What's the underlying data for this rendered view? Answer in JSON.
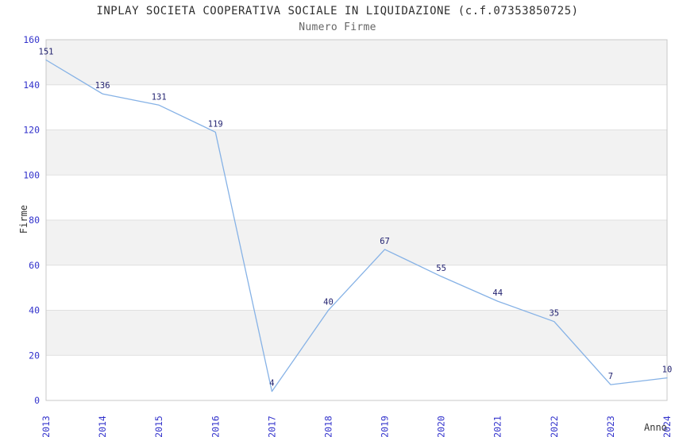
{
  "chart_data": {
    "type": "line",
    "title": "INPLAY SOCIETA COOPERATIVA SOCIALE IN LIQUIDAZIONE (c.f.07353850725)",
    "subtitle": "Numero Firme",
    "xlabel": "Anno",
    "ylabel": "Firme",
    "categories": [
      "2013",
      "2014",
      "2015",
      "2016",
      "2017",
      "2018",
      "2019",
      "2020",
      "2021",
      "2022",
      "2023",
      "2024"
    ],
    "values": [
      151,
      136,
      131,
      119,
      4,
      40,
      67,
      55,
      44,
      35,
      7,
      10
    ],
    "ylim": [
      0,
      160
    ],
    "ytick_step": 20,
    "yticks": [
      0,
      20,
      40,
      60,
      80,
      100,
      120,
      140,
      160
    ],
    "grid": "horizontal alternating bands",
    "legend_position": "none",
    "colors": {
      "line": "#86b2e6",
      "data_label": "#222270",
      "tick_label": "#3333cc",
      "band": "#f2f2f2",
      "gridline": "#e0e0e0",
      "plot_border": "#c8c8c8",
      "title": "#2f2f2f",
      "subtitle": "#666666",
      "axis_label": "#333333",
      "background": "#ffffff"
    }
  }
}
